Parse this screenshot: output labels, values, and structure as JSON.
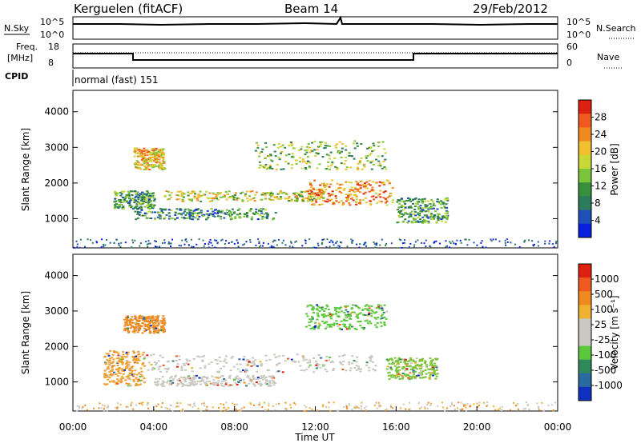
{
  "header": {
    "station": "Kerguelen (fitACF)",
    "beam": "Beam 14",
    "date": "29/Feb/2012"
  },
  "strip_labels": {
    "nsky": "N.Sky",
    "nsearch": "N.Search",
    "freq_top": "Freq.",
    "freq_unit": "[MHz]",
    "nave": "Nave",
    "cpid": "CPID",
    "cpid_value": "normal (fast) 151"
  },
  "strip_ticks": {
    "noise_left": [
      "10^5",
      "10^0"
    ],
    "noise_right": [
      "10^5",
      "10^0"
    ],
    "freq_left": [
      "18",
      "8"
    ],
    "nave_right": [
      "60",
      "0"
    ]
  },
  "chart_data": [
    {
      "type": "heatmap",
      "name": "power",
      "ylabel": "Slant Range [km]",
      "ylim": [
        180,
        4600
      ],
      "yticks": [
        1000,
        2000,
        3000,
        4000
      ],
      "xlim": [
        0,
        24
      ],
      "colorbar": {
        "label": "Power [dB]",
        "ticks": [
          "28",
          "24",
          "20",
          "16",
          "12",
          "8",
          "4"
        ],
        "colors": [
          "#0a1ee0",
          "#1f4fb8",
          "#2e7a5c",
          "#3a8f3a",
          "#7cc43c",
          "#c8d838",
          "#f0c030",
          "#f08a20",
          "#ee5a20",
          "#dd2010"
        ]
      },
      "backscatter_bands": [
        {
          "t0": 3.0,
          "t1": 4.5,
          "r0": 2400,
          "r1": 3000,
          "level": 0.65
        },
        {
          "t0": 2.0,
          "t1": 4.0,
          "r0": 1300,
          "r1": 1800,
          "level": 0.35
        },
        {
          "t0": 4.5,
          "t1": 12.5,
          "r0": 1500,
          "r1": 1800,
          "level": 0.55
        },
        {
          "t0": 11.5,
          "t1": 15.8,
          "r0": 1400,
          "r1": 2100,
          "level": 0.75
        },
        {
          "t0": 9.0,
          "t1": 15.5,
          "r0": 2400,
          "r1": 3200,
          "level": 0.45
        },
        {
          "t0": 3.0,
          "t1": 10.0,
          "r0": 1000,
          "r1": 1300,
          "level": 0.3
        },
        {
          "t0": 16.0,
          "t1": 18.5,
          "r0": 900,
          "r1": 1600,
          "level": 0.35
        }
      ]
    },
    {
      "type": "heatmap",
      "name": "velocity",
      "ylabel": "Slant Range [km]",
      "xlabel": "Time UT",
      "ylim": [
        180,
        4600
      ],
      "yticks": [
        1000,
        2000,
        3000,
        4000
      ],
      "xlim": [
        0,
        24
      ],
      "xticks": [
        "00:00",
        "04:00",
        "08:00",
        "12:00",
        "16:00",
        "20:00",
        "00:00"
      ],
      "colorbar": {
        "label": "Velocity [m s⁻¹]",
        "ticks": [
          "1000",
          "500",
          "100",
          "25",
          "-25",
          "-100",
          "-500",
          "-1000"
        ],
        "colors": [
          "#1030c0",
          "#2a6aa0",
          "#2e8a5a",
          "#5ac83a",
          "#c8c8c0",
          "#c8c8c0",
          "#f0b030",
          "#f08a20",
          "#ee5a20",
          "#dd2010"
        ]
      },
      "backscatter_bands": [
        {
          "t0": 2.5,
          "t1": 4.5,
          "r0": 2400,
          "r1": 2900,
          "color": "#f08a20"
        },
        {
          "t0": 1.5,
          "t1": 3.5,
          "r0": 900,
          "r1": 1900,
          "color": "#f0a030"
        },
        {
          "t0": 3.5,
          "t1": 15.0,
          "r0": 1300,
          "r1": 1800,
          "color": "#c8c8c0"
        },
        {
          "t0": 11.5,
          "t1": 15.5,
          "r0": 2500,
          "r1": 3200,
          "color": "#5ac83a"
        },
        {
          "t0": 15.5,
          "t1": 18.0,
          "r0": 1100,
          "r1": 1700,
          "color": "#7cc43c"
        },
        {
          "t0": 4.0,
          "t1": 10.0,
          "r0": 900,
          "r1": 1200,
          "color": "#c8c8c0"
        }
      ]
    }
  ]
}
